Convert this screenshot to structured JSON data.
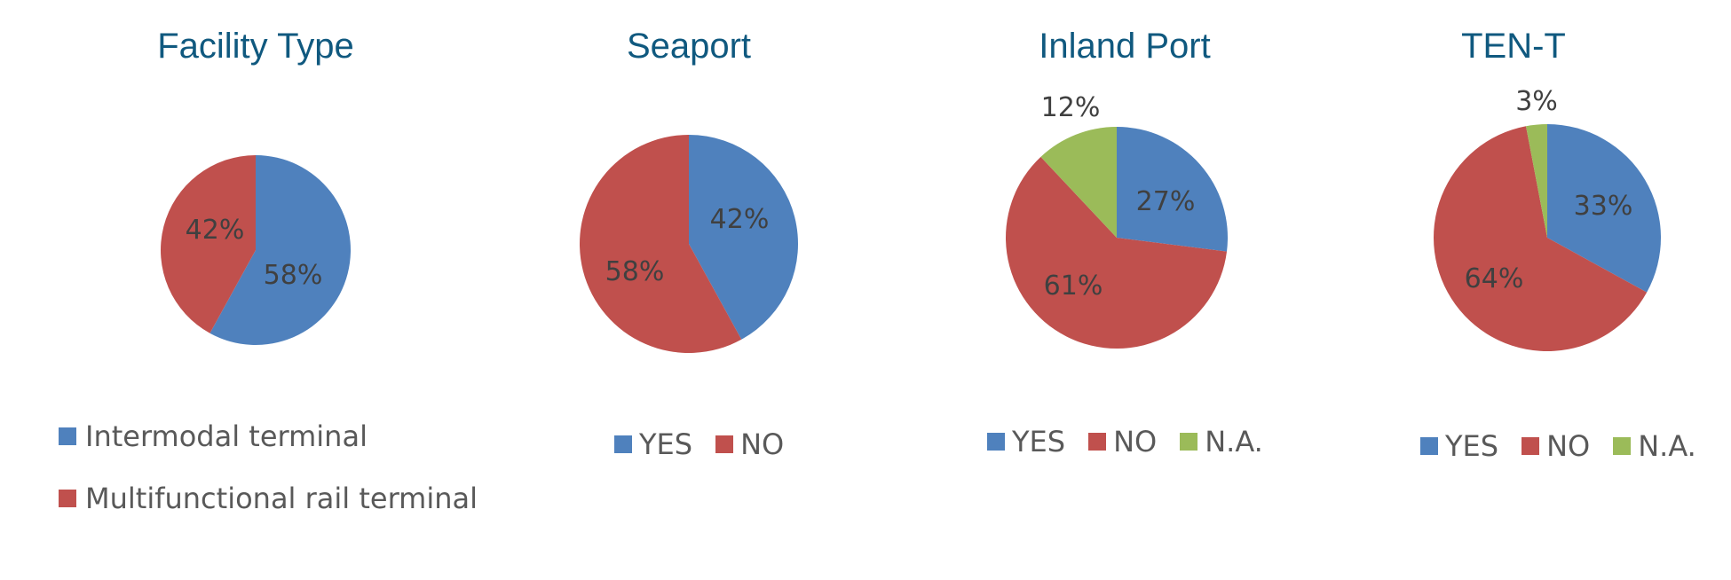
{
  "colors": {
    "blue": "#4f81bd",
    "red": "#c0504d",
    "green": "#9bbb59",
    "title": "#10597f",
    "label": "#404040"
  },
  "charts": [
    {
      "title": "Facility Type",
      "labels": [
        "58%",
        "42%"
      ],
      "legend": [
        "Intermodal terminal",
        "Multifunctional rail terminal"
      ]
    },
    {
      "title": "Seaport",
      "labels": [
        "42%",
        "58%"
      ],
      "legend": [
        "YES",
        "NO"
      ]
    },
    {
      "title": "Inland Port",
      "labels": [
        "27%",
        "61%",
        "12%"
      ],
      "legend": [
        "YES",
        "NO",
        "N.A."
      ]
    },
    {
      "title": "TEN-T",
      "labels": [
        "33%",
        "64%",
        "3%"
      ],
      "legend": [
        "YES",
        "NO",
        "N.A."
      ]
    }
  ],
  "chart_data": [
    {
      "type": "pie",
      "title": "Facility Type",
      "categories": [
        "Intermodal terminal",
        "Multifunctional rail terminal"
      ],
      "values": [
        58,
        42
      ],
      "legend_position": "bottom"
    },
    {
      "type": "pie",
      "title": "Seaport",
      "categories": [
        "YES",
        "NO"
      ],
      "values": [
        42,
        58
      ],
      "legend_position": "bottom"
    },
    {
      "type": "pie",
      "title": "Inland Port",
      "categories": [
        "YES",
        "NO",
        "N.A."
      ],
      "values": [
        27,
        61,
        12
      ],
      "legend_position": "bottom"
    },
    {
      "type": "pie",
      "title": "TEN-T",
      "categories": [
        "YES",
        "NO",
        "N.A."
      ],
      "values": [
        33,
        64,
        3
      ],
      "legend_position": "bottom"
    }
  ]
}
